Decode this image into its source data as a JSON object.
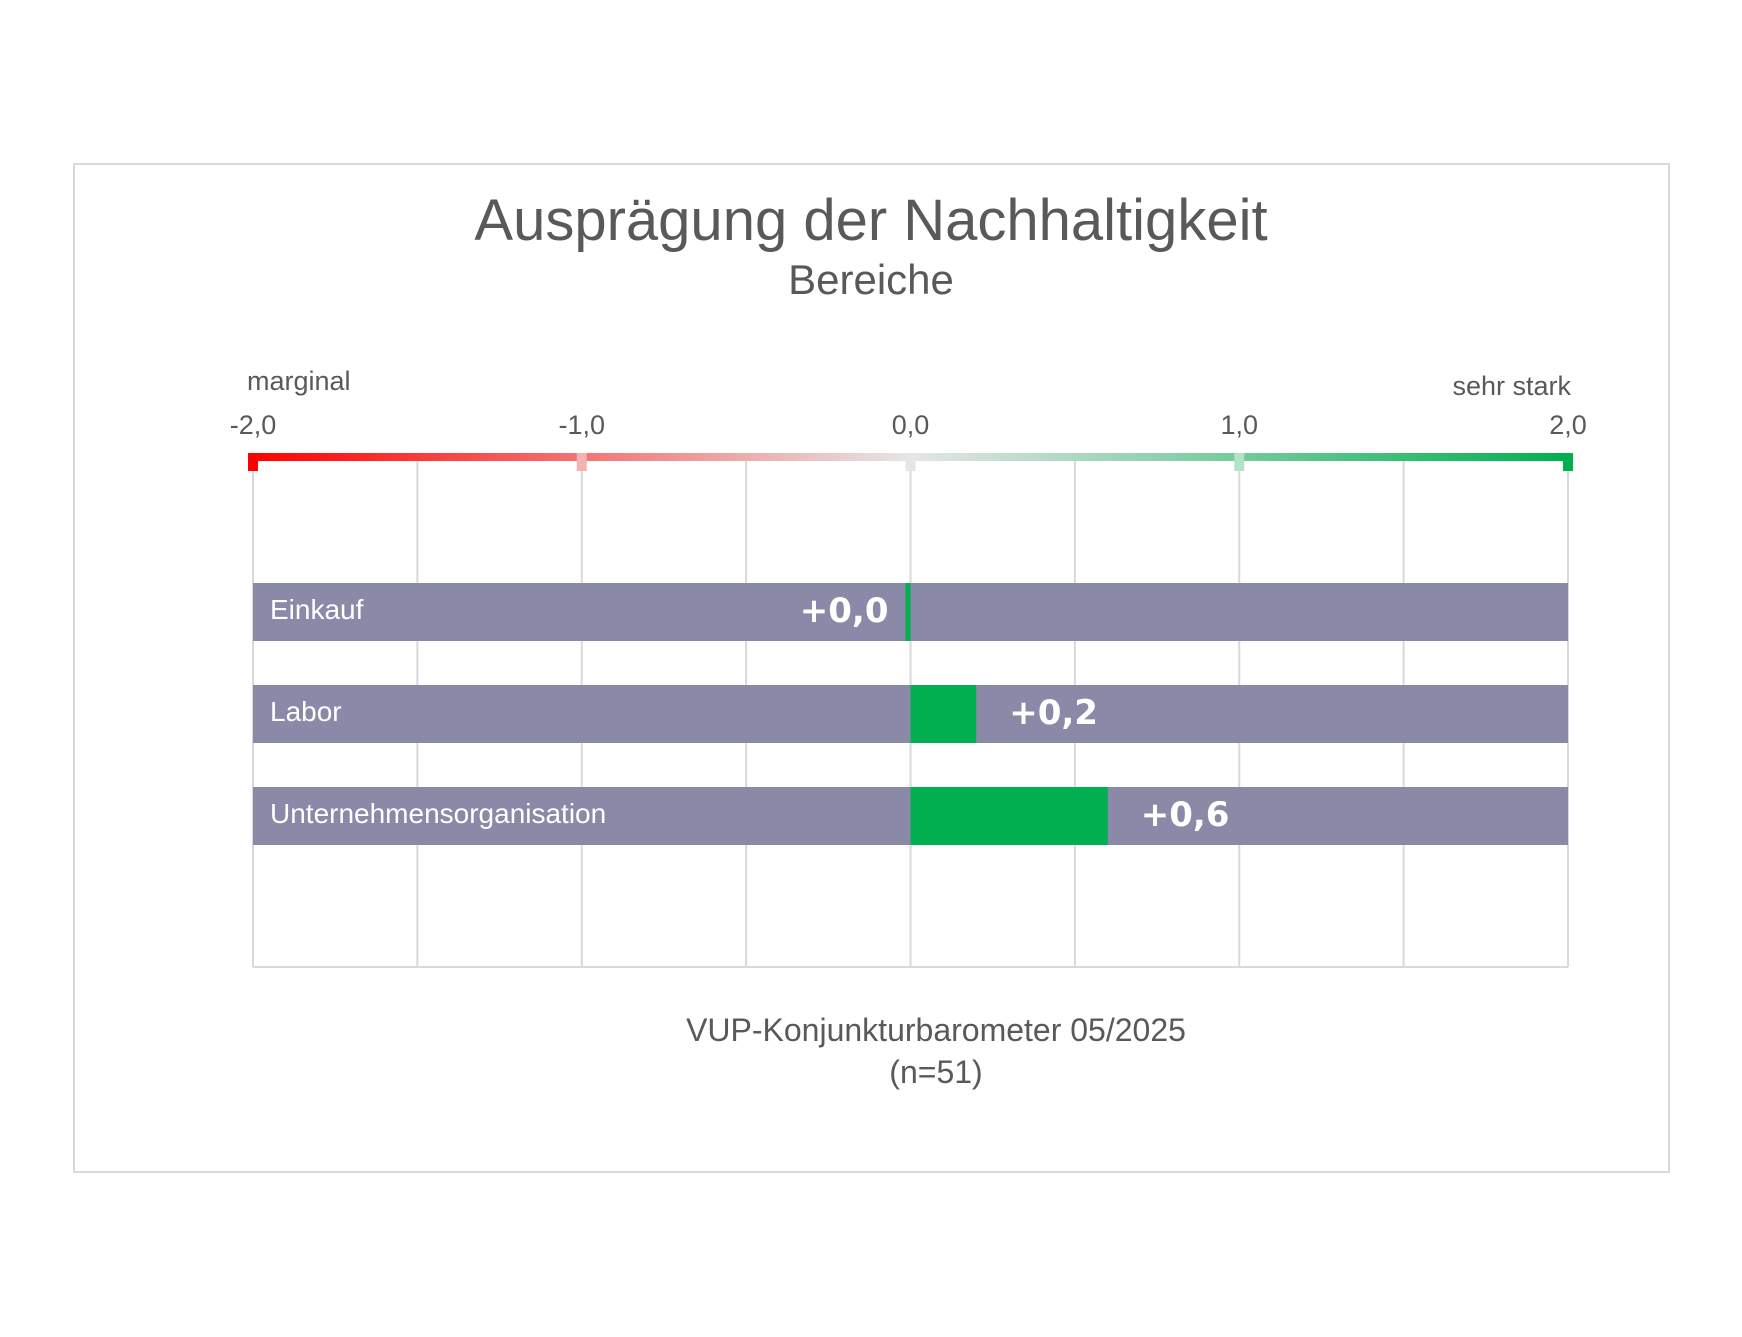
{
  "chart_data": {
    "type": "bar",
    "title": "Ausprägung der Nachhaltigkeit",
    "subtitle": "Bereiche",
    "scale_left_label": "marginal",
    "scale_right_label": "sehr stark",
    "xlim": [
      -2.0,
      2.0
    ],
    "tick_labels": [
      "-2,0",
      "-1,0",
      "0,0",
      "1,0",
      "2,0"
    ],
    "tick_values": [
      -2.0,
      -1.0,
      0.0,
      1.0,
      2.0
    ],
    "grid": true,
    "categories": [
      "Einkauf",
      "Labor",
      "Unternehmensorganisation"
    ],
    "values": [
      0.0,
      0.2,
      0.6
    ],
    "value_labels": [
      "+0,0",
      "+0,2",
      "+0,6"
    ],
    "footer_line1": "VUP-Konjunkturbarometer 05/2025",
    "footer_line2": "(n=51)"
  },
  "colors": {
    "background_bar": "#8a8aa8",
    "value_bar": "#00b050",
    "scale_negative": "#ff0000",
    "scale_neutral": "#e6e6e6",
    "scale_positive": "#00b050",
    "grid": "#d9d9d9",
    "text": "#595959"
  }
}
